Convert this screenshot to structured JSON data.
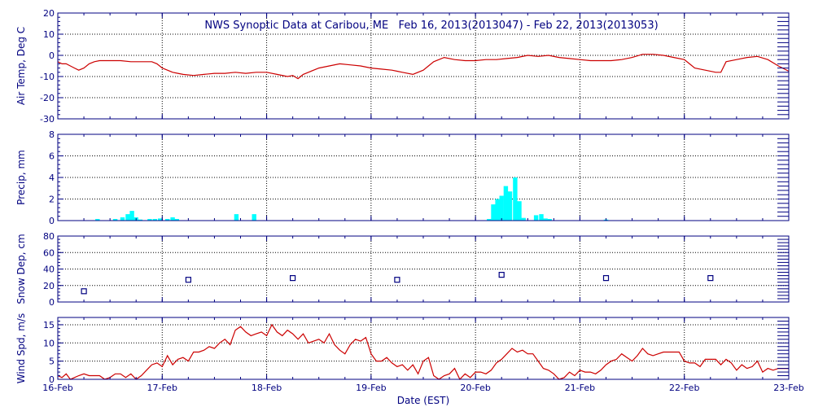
{
  "title": "NWS Synoptic Data at Caribou, ME   Feb 16, 2013(2013047) - Feb 22, 2013(2013053)",
  "xlabel": "Date (EST)",
  "chart_data": {
    "type": "multi-panel time series",
    "x_domain": [
      0,
      7
    ],
    "x_ticks": [
      {
        "x": 0,
        "label": "16-Feb"
      },
      {
        "x": 1,
        "label": "17-Feb"
      },
      {
        "x": 2,
        "label": "18-Feb"
      },
      {
        "x": 3,
        "label": "19-Feb"
      },
      {
        "x": 4,
        "label": "20-Feb"
      },
      {
        "x": 5,
        "label": "21-Feb"
      },
      {
        "x": 6,
        "label": "22-Feb"
      },
      {
        "x": 7,
        "label": "23-Feb"
      }
    ],
    "grid": true,
    "panels": [
      {
        "id": "air-temp",
        "type": "line",
        "ylabel": "Air Temp, Deg C",
        "ylim": [
          -30,
          20
        ],
        "yticks": [
          -30,
          -20,
          -10,
          0,
          10,
          20
        ],
        "color": "#cc0000",
        "x": [
          0,
          0.04,
          0.08,
          0.12,
          0.16,
          0.2,
          0.25,
          0.3,
          0.35,
          0.4,
          0.5,
          0.6,
          0.7,
          0.8,
          0.9,
          0.95,
          1.0,
          1.05,
          1.1,
          1.15,
          1.2,
          1.3,
          1.4,
          1.5,
          1.6,
          1.7,
          1.8,
          1.9,
          2.0,
          2.1,
          2.2,
          2.25,
          2.3,
          2.35,
          2.4,
          2.5,
          2.6,
          2.7,
          2.8,
          2.9,
          3.0,
          3.1,
          3.2,
          3.25,
          3.3,
          3.4,
          3.5,
          3.55,
          3.6,
          3.7,
          3.8,
          3.9,
          4.0,
          4.1,
          4.2,
          4.3,
          4.4,
          4.5,
          4.6,
          4.7,
          4.8,
          4.9,
          5.0,
          5.1,
          5.2,
          5.3,
          5.4,
          5.5,
          5.6,
          5.7,
          5.8,
          5.9,
          6.0,
          6.05,
          6.1,
          6.2,
          6.3,
          6.35,
          6.4,
          6.5,
          6.6,
          6.7,
          6.8,
          6.9,
          7.0
        ],
        "y": [
          -3,
          -4,
          -4,
          -5,
          -6,
          -7,
          -6,
          -4,
          -3,
          -2.5,
          -2.5,
          -2.5,
          -3,
          -3,
          -3,
          -4,
          -6,
          -7,
          -8,
          -8.5,
          -9,
          -9.5,
          -9,
          -8.5,
          -8.5,
          -8,
          -8.5,
          -8,
          -8,
          -9,
          -10,
          -9.5,
          -11,
          -9,
          -8,
          -6,
          -5,
          -4,
          -4.5,
          -5,
          -6,
          -6.5,
          -7,
          -7.5,
          -8,
          -9,
          -7,
          -5,
          -3,
          -1,
          -2,
          -2.5,
          -2.5,
          -2,
          -2,
          -1.5,
          -1,
          0,
          -0.5,
          0,
          -1,
          -1.5,
          -2,
          -2.5,
          -2.5,
          -2.5,
          -2,
          -1,
          0.5,
          0.5,
          0,
          -1,
          -2,
          -4,
          -6,
          -7,
          -8,
          -8,
          -3,
          -2,
          -1,
          -0.5,
          -2,
          -5,
          -7.5
        ]
      },
      {
        "id": "precip",
        "type": "bar",
        "ylabel": "Precip, mm",
        "ylim": [
          0,
          8
        ],
        "yticks": [
          0,
          2,
          4,
          6,
          8
        ],
        "color": "#00ffff",
        "bar_width": 0.042,
        "x": [
          0.38,
          0.55,
          0.62,
          0.67,
          0.71,
          0.75,
          0.79,
          0.88,
          0.93,
          0.98,
          1.05,
          1.1,
          1.14,
          1.71,
          1.88,
          4.13,
          4.17,
          4.21,
          4.25,
          4.29,
          4.33,
          4.38,
          4.42,
          4.46,
          4.58,
          4.63,
          4.67,
          4.71,
          5.25
        ],
        "values": [
          0.15,
          0.15,
          0.3,
          0.6,
          0.9,
          0.3,
          0.1,
          0.15,
          0.15,
          0.2,
          0.15,
          0.3,
          0.15,
          0.6,
          0.6,
          0.15,
          1.5,
          2.0,
          2.3,
          3.2,
          2.7,
          4.0,
          1.8,
          0.25,
          0.5,
          0.6,
          0.2,
          0.15,
          0.1
        ]
      },
      {
        "id": "snow-depth",
        "type": "scatter",
        "ylabel": "Snow Dep, cm",
        "ylim": [
          0,
          80
        ],
        "yticks": [
          0,
          20,
          40,
          60,
          80
        ],
        "color": "#000080",
        "x": [
          0.25,
          1.25,
          2.25,
          3.25,
          4.25,
          5.25,
          6.25
        ],
        "y": [
          13,
          27,
          29,
          27,
          33,
          29,
          29
        ]
      },
      {
        "id": "wind-speed",
        "type": "line",
        "ylabel": "Wind Spd, m/s",
        "ylim": [
          0,
          17
        ],
        "yticks": [
          0,
          5,
          10,
          15
        ],
        "color": "#cc0000",
        "x": [
          0,
          0.04,
          0.08,
          0.12,
          0.16,
          0.2,
          0.25,
          0.3,
          0.35,
          0.4,
          0.45,
          0.5,
          0.55,
          0.6,
          0.65,
          0.7,
          0.75,
          0.8,
          0.85,
          0.9,
          0.95,
          1.0,
          1.05,
          1.1,
          1.15,
          1.2,
          1.25,
          1.3,
          1.35,
          1.4,
          1.45,
          1.5,
          1.55,
          1.6,
          1.65,
          1.7,
          1.75,
          1.8,
          1.85,
          1.9,
          1.95,
          2.0,
          2.05,
          2.1,
          2.15,
          2.2,
          2.25,
          2.3,
          2.35,
          2.4,
          2.45,
          2.5,
          2.55,
          2.6,
          2.65,
          2.7,
          2.75,
          2.8,
          2.85,
          2.9,
          2.95,
          3.0,
          3.05,
          3.1,
          3.15,
          3.2,
          3.25,
          3.3,
          3.35,
          3.4,
          3.45,
          3.5,
          3.55,
          3.6,
          3.65,
          3.7,
          3.75,
          3.8,
          3.85,
          3.9,
          3.95,
          4.0,
          4.05,
          4.1,
          4.15,
          4.2,
          4.25,
          4.3,
          4.35,
          4.4,
          4.45,
          4.5,
          4.55,
          4.6,
          4.65,
          4.7,
          4.75,
          4.8,
          4.85,
          4.9,
          4.95,
          5.0,
          5.05,
          5.1,
          5.15,
          5.2,
          5.25,
          5.3,
          5.35,
          5.4,
          5.45,
          5.5,
          5.55,
          5.6,
          5.65,
          5.7,
          5.75,
          5.8,
          5.85,
          5.9,
          5.95,
          6.0,
          6.05,
          6.1,
          6.15,
          6.2,
          6.25,
          6.3,
          6.35,
          6.4,
          6.45,
          6.5,
          6.55,
          6.6,
          6.65,
          6.7,
          6.75,
          6.8,
          6.85,
          6.9,
          6.95,
          7.0
        ],
        "y": [
          1,
          0.5,
          1.5,
          0,
          0.5,
          1,
          1.5,
          1,
          1,
          1,
          0,
          0.5,
          1.5,
          1.5,
          0.5,
          1.5,
          0,
          1,
          2.5,
          4,
          4.5,
          3.5,
          6.5,
          4,
          5.5,
          6,
          5,
          7.5,
          7.5,
          8,
          9,
          8.5,
          10,
          11,
          9.5,
          13.5,
          14.5,
          13,
          12,
          12.5,
          13,
          12,
          15,
          13,
          12,
          13.5,
          12.5,
          11,
          12.5,
          10,
          10.5,
          11,
          10,
          12.5,
          9.5,
          8,
          7,
          9.5,
          11,
          10.5,
          11.5,
          7,
          5,
          5,
          6,
          4.5,
          3.5,
          4,
          2.5,
          4,
          1.5,
          5,
          6,
          1,
          0,
          1,
          1.5,
          3,
          0,
          1.5,
          0.5,
          2,
          2,
          1.5,
          2.5,
          4.5,
          5.5,
          7,
          8.5,
          7.5,
          8,
          7,
          7,
          5,
          3,
          2.5,
          1.5,
          0,
          0.5,
          2,
          1,
          2.5,
          2,
          2,
          1.5,
          2.5,
          4,
          5,
          5.5,
          7,
          6,
          5,
          6.5,
          8.5,
          7,
          6.5,
          7,
          7.5,
          7.5,
          7.5,
          7.5,
          5,
          4.5,
          4.5,
          3.5,
          5.5,
          5.5,
          5.5,
          4,
          5.5,
          4.5,
          2.5,
          4,
          3,
          3.5,
          5,
          2,
          3,
          2.5,
          3,
          3,
          3
        ]
      }
    ]
  }
}
